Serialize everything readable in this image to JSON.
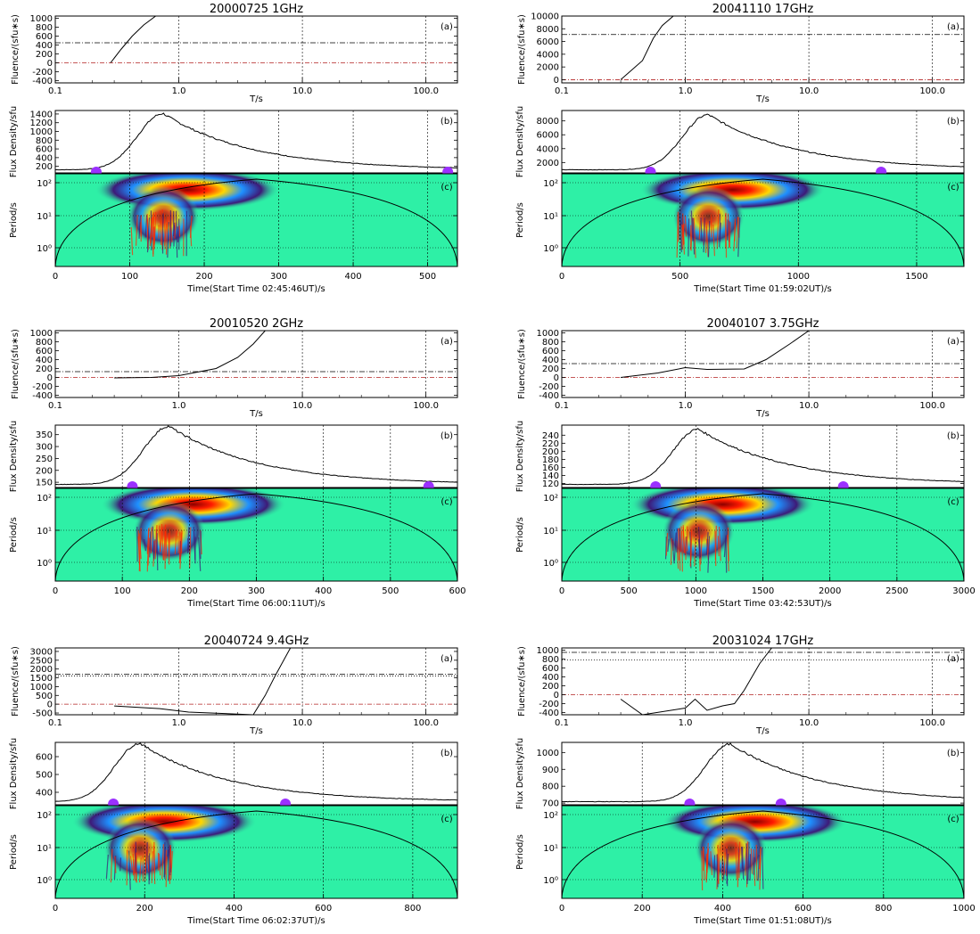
{
  "figure": {
    "fluence_ylabel": "Fluence/(sfu∗s)",
    "flux_ylabel": "Flux Density/sfu",
    "period_ylabel": "Period/s",
    "t_xlabel": "T/s",
    "t_ticks": [
      "0.1",
      "1.0",
      "10.0",
      "100.0"
    ],
    "period_ticks": [
      "10²",
      "10¹",
      "10⁰"
    ],
    "tags": [
      "(a)",
      "(b)",
      "(c)"
    ]
  },
  "colors": {
    "background": "#ffffff",
    "axes": "#000000",
    "fluence_curve": "#000000",
    "threshold_line": "#000000",
    "zero_line": "#b22222",
    "marker": "#9b30ff",
    "wavelet_background": "#2ef0a6"
  },
  "chart_data": [
    {
      "type": "line",
      "title": "20000725 1GHz",
      "fluence": {
        "ylim": [
          -450,
          1050
        ],
        "yticks": [
          -400,
          -200,
          0,
          200,
          400,
          600,
          800,
          1000
        ],
        "threshold": 450,
        "zero": 0,
        "curve_x": [
          0.28,
          0.34,
          0.42,
          0.52,
          0.65
        ],
        "curve_y": [
          0,
          300,
          600,
          850,
          1050
        ]
      },
      "flux": {
        "ylim": [
          50,
          1480
        ],
        "yticks": [
          200,
          400,
          600,
          800,
          1000,
          1200,
          1400
        ],
        "peak_time": 145,
        "peak_value": 1410,
        "markers": [
          55,
          527
        ]
      },
      "time": {
        "xlim": [
          0,
          540
        ],
        "xticks": [
          0,
          100,
          200,
          300,
          400,
          500
        ],
        "grid": [
          100,
          200,
          300,
          400,
          500
        ],
        "xlabel": "Time(Start Time 02:45:46UT)/s"
      }
    },
    {
      "type": "line",
      "title": "20041110 17GHz",
      "fluence": {
        "ylim": [
          -500,
          10000
        ],
        "yticks": [
          0,
          2000,
          4000,
          6000,
          8000,
          10000
        ],
        "threshold": 7100,
        "zero": 0,
        "curve_x": [
          0.3,
          0.45,
          0.55,
          0.65,
          0.8
        ],
        "curve_y": [
          0,
          3000,
          6500,
          8500,
          10000
        ]
      },
      "flux": {
        "ylim": [
          500,
          9500
        ],
        "yticks": [
          2000,
          4000,
          6000,
          8000
        ],
        "peak_time": 620,
        "peak_value": 8900,
        "markers": [
          375,
          1350
        ]
      },
      "time": {
        "xlim": [
          0,
          1700
        ],
        "xticks": [
          0,
          500,
          1000,
          1500
        ],
        "grid": [
          500,
          1000,
          1500
        ],
        "xlabel": "Time(Start Time 01:59:02UT)/s"
      }
    },
    {
      "type": "line",
      "title": "20010520 2GHz",
      "fluence": {
        "ylim": [
          -450,
          1050
        ],
        "yticks": [
          -400,
          -200,
          0,
          200,
          400,
          600,
          800,
          1000
        ],
        "threshold": 130,
        "zero": 0,
        "curve_x": [
          0.3,
          0.6,
          1.0,
          2.0,
          3.0,
          4.0,
          5.0
        ],
        "curve_y": [
          -10,
          0,
          40,
          200,
          450,
          750,
          1050
        ]
      },
      "flux": {
        "ylim": [
          128,
          390
        ],
        "yticks": [
          150,
          200,
          250,
          300,
          350
        ],
        "peak_time": 170,
        "peak_value": 385,
        "markers": [
          115,
          557
        ]
      },
      "time": {
        "xlim": [
          0,
          600
        ],
        "xticks": [
          0,
          100,
          200,
          300,
          400,
          500,
          600
        ],
        "grid": [
          100,
          200,
          300,
          400,
          500
        ],
        "xlabel": "Time(Start Time 06:00:11UT)/s"
      }
    },
    {
      "type": "line",
      "title": "20040107 3.75GHz",
      "fluence": {
        "ylim": [
          -450,
          1050
        ],
        "yticks": [
          -400,
          -200,
          0,
          200,
          400,
          600,
          800,
          1000
        ],
        "threshold": 310,
        "zero": 0,
        "curve_x": [
          0.3,
          0.6,
          1.0,
          1.5,
          3.0,
          4.5,
          7.0,
          10.0
        ],
        "curve_y": [
          0,
          100,
          220,
          180,
          190,
          400,
          750,
          1050
        ]
      },
      "flux": {
        "ylim": [
          110,
          265
        ],
        "yticks": [
          120,
          140,
          160,
          180,
          200,
          220,
          240
        ],
        "peak_time": 1020,
        "peak_value": 255,
        "markers": [
          700,
          2100
        ]
      },
      "time": {
        "xlim": [
          0,
          3000
        ],
        "xticks": [
          0,
          500,
          1000,
          1500,
          2000,
          2500,
          3000
        ],
        "grid": [
          500,
          1000,
          1500,
          2000,
          2500
        ],
        "xlabel": "Time(Start Time 03:42:53UT)/s"
      }
    },
    {
      "type": "line",
      "title": "20040724 9.4GHz",
      "fluence": {
        "ylim": [
          -600,
          3200
        ],
        "yticks": [
          -500,
          0,
          500,
          1000,
          1500,
          2000,
          2500,
          3000
        ],
        "threshold": 1700,
        "dotted": 1600,
        "zero": 0,
        "curve_x": [
          0.3,
          0.7,
          1.2,
          4.0,
          5.0,
          6.0,
          8.0
        ],
        "curve_y": [
          -100,
          -250,
          -450,
          -600,
          500,
          1600,
          3200
        ]
      },
      "flux": {
        "ylim": [
          330,
          680
        ],
        "yticks": [
          400,
          500,
          600
        ],
        "peak_time": 190,
        "peak_value": 675,
        "markers": [
          130,
          515
        ]
      },
      "time": {
        "xlim": [
          0,
          900
        ],
        "xticks": [
          0,
          200,
          400,
          600,
          800
        ],
        "grid": [
          200,
          400,
          600,
          800
        ],
        "xlabel": "Time(Start Time 06:02:37UT)/s"
      }
    },
    {
      "type": "line",
      "title": "20031024 17GHz",
      "fluence": {
        "ylim": [
          -450,
          1050
        ],
        "yticks": [
          -400,
          -200,
          0,
          200,
          400,
          600,
          800,
          1000
        ],
        "threshold": 950,
        "dotted": 780,
        "zero": 0,
        "curve_x": [
          0.3,
          0.45,
          1.0,
          1.2,
          1.5,
          2.0,
          2.5,
          3.0,
          4.0,
          5.0
        ],
        "curve_y": [
          -100,
          -450,
          -300,
          -100,
          -350,
          -250,
          -200,
          100,
          700,
          1050
        ]
      },
      "flux": {
        "ylim": [
          690,
          1060
        ],
        "yticks": [
          700,
          800,
          900,
          1000
        ],
        "peak_time": 420,
        "peak_value": 1050,
        "markers": [
          318,
          545
        ]
      },
      "time": {
        "xlim": [
          0,
          1000
        ],
        "xticks": [
          0,
          200,
          400,
          600,
          800,
          1000
        ],
        "grid": [
          200,
          400,
          600,
          800
        ],
        "xlabel": "Time(Start Time 01:51:08UT)/s"
      }
    }
  ]
}
